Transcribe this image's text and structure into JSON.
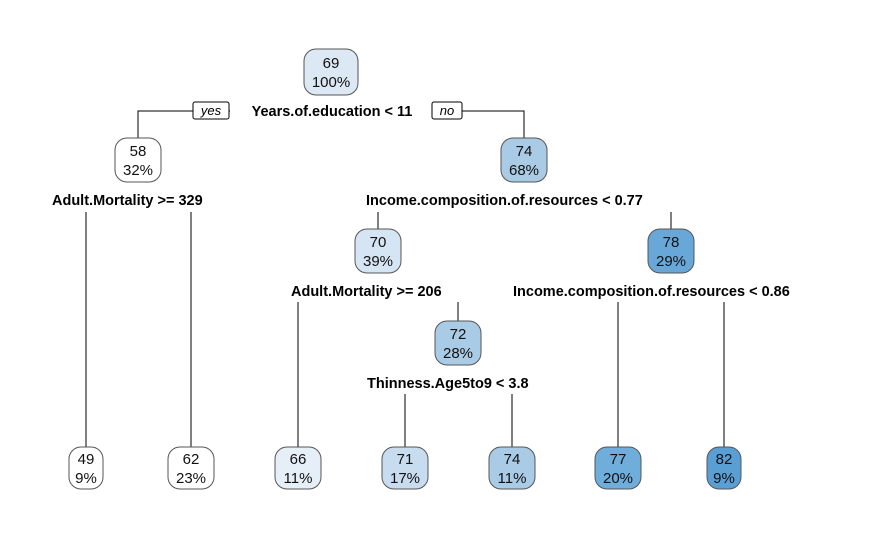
{
  "branch_labels": {
    "yes": "yes",
    "no": "no"
  },
  "nodes": [
    {
      "id": "n1",
      "value": "69",
      "pct": "100%",
      "color": "#dde8f5"
    },
    {
      "id": "n2",
      "value": "58",
      "pct": "32%",
      "color": "#ffffff"
    },
    {
      "id": "n3",
      "value": "74",
      "pct": "68%",
      "color": "#a9cbe6"
    },
    {
      "id": "n4",
      "value": "49",
      "pct": "9%",
      "color": "#ffffff"
    },
    {
      "id": "n5",
      "value": "62",
      "pct": "23%",
      "color": "#ffffff"
    },
    {
      "id": "n6",
      "value": "70",
      "pct": "39%",
      "color": "#d6e5f4"
    },
    {
      "id": "n7",
      "value": "78",
      "pct": "29%",
      "color": "#67a8d8"
    },
    {
      "id": "n8",
      "value": "66",
      "pct": "11%",
      "color": "#e6eef8"
    },
    {
      "id": "n9",
      "value": "72",
      "pct": "28%",
      "color": "#a9cbe6"
    },
    {
      "id": "n10",
      "value": "71",
      "pct": "17%",
      "color": "#c8dcf0"
    },
    {
      "id": "n11",
      "value": "74",
      "pct": "11%",
      "color": "#a9cbe6"
    },
    {
      "id": "n12",
      "value": "77",
      "pct": "20%",
      "color": "#6fadda"
    },
    {
      "id": "n13",
      "value": "82",
      "pct": "9%",
      "color": "#5a9fd4"
    }
  ],
  "splits": [
    {
      "id": "s1",
      "label": "Years.of.education < 11"
    },
    {
      "id": "s2",
      "label": "Adult.Mortality >= 329"
    },
    {
      "id": "s3",
      "label": "Income.composition.of.resources < 0.77"
    },
    {
      "id": "s6",
      "label": "Adult.Mortality >= 206"
    },
    {
      "id": "s7",
      "label": "Income.composition.of.resources < 0.86"
    },
    {
      "id": "s9",
      "label": "Thinness.Age5to9 < 3.8"
    }
  ]
}
